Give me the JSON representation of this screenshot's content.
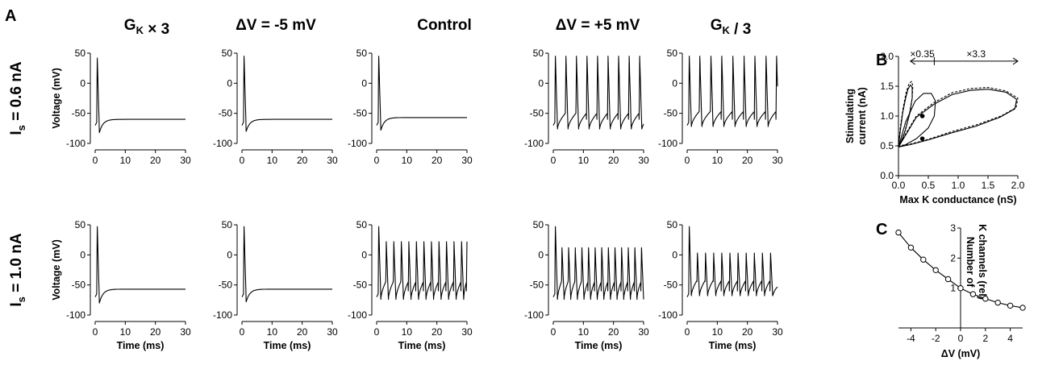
{
  "panel_labels": {
    "a": "A",
    "b": "B",
    "c": "C"
  },
  "row_labels": [
    {
      "main": "I",
      "sub": "s",
      "value": " = 0.6 nA"
    },
    {
      "main": "I",
      "sub": "s",
      "value": " = 1.0 nA"
    }
  ],
  "columns": [
    {
      "title_parts": [
        {
          "t": "G"
        },
        {
          "t": "K",
          "sub": true
        },
        {
          "t": " × 3"
        }
      ]
    },
    {
      "title_parts": [
        {
          "t": "ΔV = -5 mV"
        }
      ]
    },
    {
      "title_parts": [
        {
          "t": "Control"
        }
      ]
    },
    {
      "title_parts": [
        {
          "t": "ΔV = +5 mV"
        }
      ]
    },
    {
      "title_parts": [
        {
          "t": "G"
        },
        {
          "t": "K",
          "sub": true
        },
        {
          "t": " / 3"
        }
      ]
    }
  ],
  "chart_data": [
    {
      "type": "line",
      "panel": "A",
      "description": "Membrane voltage traces, 2 rows (stimulating current) × 5 columns (condition)",
      "ylabel": "Voltage (mV)",
      "xlabel": "Time (ms)",
      "xlim": [
        0,
        30
      ],
      "ylim": [
        -100,
        50
      ],
      "xticks": [
        0,
        10,
        20,
        30
      ],
      "yticks": [
        50,
        0,
        -50,
        -100
      ],
      "traces": [
        [
          {
            "condition": "GK x 3",
            "spikes_ms": [
              0.5
            ],
            "peak_mv": 42,
            "trough_mv": -82,
            "rest_mv": -60
          },
          {
            "condition": "dV = -5 mV",
            "spikes_ms": [
              0.5
            ],
            "peak_mv": 45,
            "trough_mv": -80,
            "rest_mv": -60
          },
          {
            "condition": "Control",
            "spikes_ms": [
              0.5
            ],
            "peak_mv": 45,
            "trough_mv": -78,
            "rest_mv": -57
          },
          {
            "condition": "dV = +5 mV",
            "spikes_ms": [
              0.5,
              4,
              7.5,
              11,
              14.5,
              18,
              21.5,
              25,
              28.5
            ],
            "peak_mv": 45,
            "trough_mv": -76,
            "rest_mv": -55
          },
          {
            "condition": "GK / 3",
            "spikes_ms": [
              0.5,
              4,
              7.7,
              11.3,
              15,
              18.7,
              22.3,
              26,
              29.5
            ],
            "peak_mv": 45,
            "trough_mv": -72,
            "rest_mv": -52
          }
        ],
        [
          {
            "condition": "GK x 3",
            "spikes_ms": [
              0.5
            ],
            "peak_mv": 47,
            "trough_mv": -80,
            "rest_mv": -57
          },
          {
            "condition": "dV = -5 mV",
            "spikes_ms": [
              0.5
            ],
            "peak_mv": 47,
            "trough_mv": -78,
            "rest_mv": -57
          },
          {
            "condition": "Control",
            "spikes_ms": [
              0.5,
              3,
              5.5,
              8,
              10.5,
              13,
              15.5,
              18,
              20.5,
              23,
              25.5,
              28,
              29.8
            ],
            "peak_mv": 22,
            "first_peak_mv": 47,
            "trough_mv": -74,
            "rest_mv": -50
          },
          {
            "condition": "dV = +5 mV",
            "spikes_ms": [
              0.5,
              2.7,
              4.9,
              7.1,
              9.3,
              11.5,
              13.7,
              15.9,
              18.1,
              20.3,
              22.5,
              24.7,
              26.9,
              29.1
            ],
            "peak_mv": 12,
            "first_peak_mv": 47,
            "trough_mv": -74,
            "rest_mv": -50
          },
          {
            "condition": "GK / 3",
            "spikes_ms": [
              0.5,
              3.2,
              5.9,
              8.6,
              11.3,
              14,
              16.7,
              19.4,
              22.1,
              24.8,
              27.5
            ],
            "peak_mv": 3,
            "first_peak_mv": 47,
            "trough_mv": -68,
            "rest_mv": -48
          }
        ]
      ]
    },
    {
      "type": "line",
      "panel": "B",
      "xlabel": "Max K conductance (nS)",
      "ylabel_lines": [
        "Stimulating",
        "current (nA)"
      ],
      "xlim": [
        0,
        2.0
      ],
      "ylim": [
        0,
        2.0
      ],
      "xticks": [
        0.0,
        0.5,
        1.0,
        1.5,
        2.0
      ],
      "yticks": [
        0.0,
        0.5,
        1.0,
        1.5,
        2.0
      ],
      "xtick_labels": [
        "0.0",
        "0.5",
        "1.0",
        "1.5",
        "2.0"
      ],
      "ytick_labels": [
        "0.0",
        "0.5",
        "1.0",
        "1.5",
        "2.0"
      ],
      "arrow": {
        "from": 0.2,
        "mid": 0.6,
        "to": 2.0,
        "y": 1.92,
        "left_label": "×0.35",
        "right_label": "×3.3"
      },
      "points": [
        {
          "x": 0.4,
          "y": 1.0
        },
        {
          "x": 0.4,
          "y": 0.62
        }
      ],
      "boundaries": [
        {
          "style": "solid",
          "points": [
            [
              0,
              0.48
            ],
            [
              0.03,
              0.75
            ],
            [
              0.07,
              1.05
            ],
            [
              0.12,
              1.3
            ],
            [
              0.16,
              1.45
            ],
            [
              0.2,
              1.52
            ],
            [
              0.23,
              1.48
            ],
            [
              0.23,
              1.3
            ],
            [
              0.19,
              1.05
            ],
            [
              0.12,
              0.78
            ],
            [
              0.05,
              0.57
            ],
            [
              0,
              0.48
            ]
          ]
        },
        {
          "style": "dashed",
          "points": [
            [
              0,
              0.5
            ],
            [
              0.03,
              0.8
            ],
            [
              0.08,
              1.15
            ],
            [
              0.13,
              1.4
            ],
            [
              0.18,
              1.55
            ],
            [
              0.22,
              1.58
            ],
            [
              0.24,
              1.5
            ],
            [
              0.23,
              1.3
            ],
            [
              0.18,
              1.02
            ],
            [
              0.1,
              0.72
            ],
            [
              0.03,
              0.54
            ],
            [
              0,
              0.5
            ]
          ]
        },
        {
          "style": "solid",
          "points": [
            [
              0,
              0.48
            ],
            [
              0.12,
              0.9
            ],
            [
              0.28,
              1.25
            ],
            [
              0.42,
              1.38
            ],
            [
              0.55,
              1.38
            ],
            [
              0.62,
              1.25
            ],
            [
              0.6,
              1.0
            ],
            [
              0.5,
              0.8
            ],
            [
              0.3,
              0.62
            ],
            [
              0.12,
              0.52
            ],
            [
              0,
              0.48
            ]
          ]
        },
        {
          "style": "solid",
          "points": [
            [
              0,
              0.48
            ],
            [
              0.3,
              0.98
            ],
            [
              0.6,
              1.2
            ],
            [
              0.9,
              1.36
            ],
            [
              1.2,
              1.43
            ],
            [
              1.5,
              1.45
            ],
            [
              1.8,
              1.4
            ],
            [
              1.98,
              1.28
            ],
            [
              1.95,
              1.12
            ],
            [
              1.7,
              0.98
            ],
            [
              1.3,
              0.83
            ],
            [
              0.9,
              0.72
            ],
            [
              0.5,
              0.6
            ],
            [
              0.2,
              0.52
            ],
            [
              0,
              0.48
            ]
          ]
        },
        {
          "style": "dashed",
          "points": [
            [
              0,
              0.5
            ],
            [
              0.3,
              1.0
            ],
            [
              0.6,
              1.23
            ],
            [
              0.9,
              1.39
            ],
            [
              1.2,
              1.46
            ],
            [
              1.5,
              1.48
            ],
            [
              1.8,
              1.42
            ],
            [
              2.0,
              1.3
            ],
            [
              1.97,
              1.14
            ],
            [
              1.72,
              1.0
            ],
            [
              1.3,
              0.85
            ],
            [
              0.9,
              0.74
            ],
            [
              0.5,
              0.61
            ],
            [
              0.2,
              0.53
            ],
            [
              0,
              0.5
            ]
          ]
        }
      ]
    },
    {
      "type": "line",
      "panel": "C",
      "xlabel": "ΔV (mV)",
      "ylabel_lines": [
        "Number of",
        "K channels (rel)"
      ],
      "xlim": [
        -5,
        5
      ],
      "ylim": [
        0,
        3
      ],
      "xticks": [
        -4,
        -2,
        0,
        2,
        4
      ],
      "yticks": [
        1,
        2,
        3
      ],
      "xtick_labels": [
        "-4",
        "-2",
        "0",
        "2",
        "4"
      ],
      "ytick_labels": [
        "1",
        "2",
        "3"
      ],
      "x": [
        -5,
        -4,
        -3,
        -2,
        -1,
        0,
        1,
        2,
        3,
        4,
        5
      ],
      "y": [
        2.85,
        2.35,
        1.95,
        1.6,
        1.3,
        1.0,
        0.8,
        0.65,
        0.52,
        0.42,
        0.35
      ]
    }
  ]
}
